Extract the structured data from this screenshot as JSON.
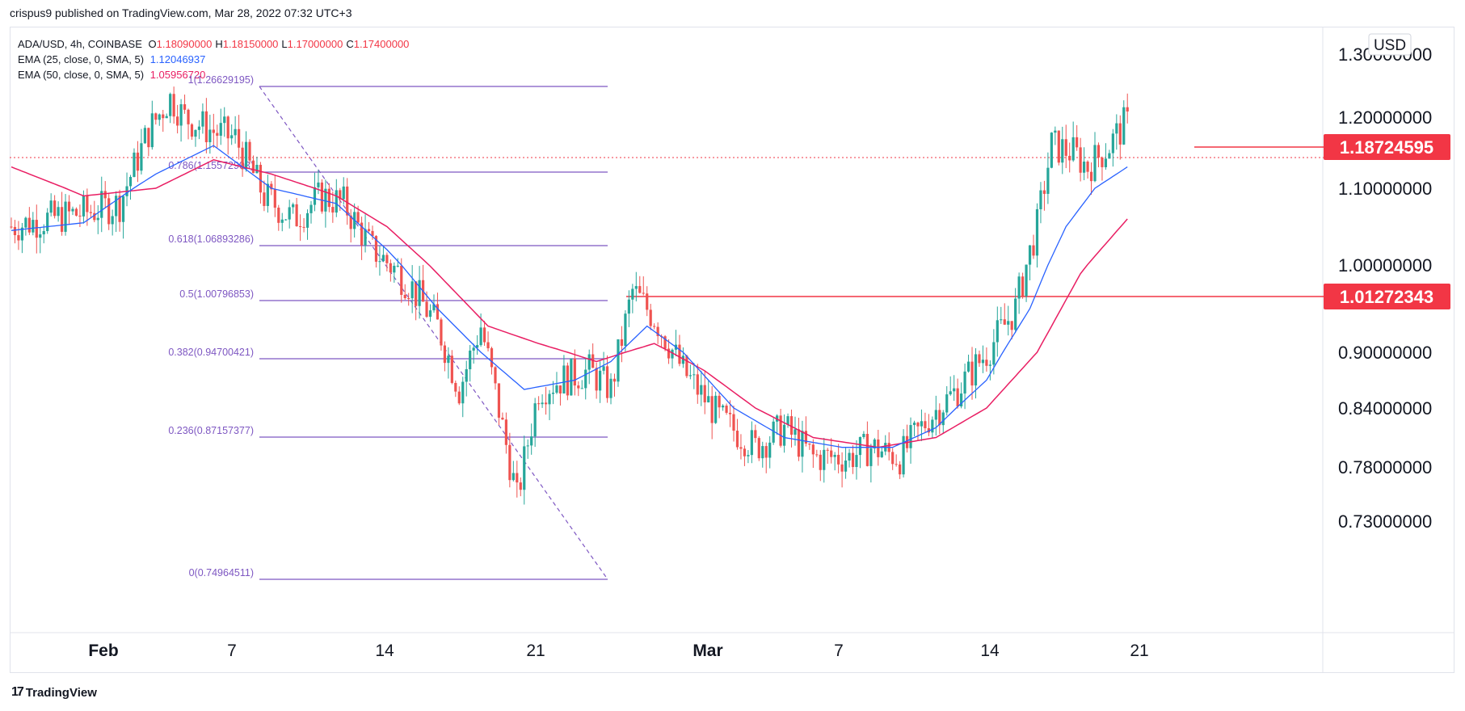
{
  "header": {
    "published_text": "crispus9 published on TradingView.com, Mar 28, 2022 07:32 UTC+3"
  },
  "legend": {
    "symbol": "ADA/USD, 4h, COINBASE",
    "ohlc": [
      {
        "k": "O",
        "v": "1.18090000"
      },
      {
        "k": "H",
        "v": "1.18150000"
      },
      {
        "k": "L",
        "v": "1.17000000"
      },
      {
        "k": "C",
        "v": "1.17400000"
      }
    ],
    "ema25_label": "EMA (25, close, 0, SMA, 5)",
    "ema25_value": "1.12046937",
    "ema50_label": "EMA (50, close, 0, SMA, 5)",
    "ema50_value": "1.05956720",
    "ema50_color": "#e91e63",
    "ema25_color": "#2962ff",
    "ohlc_color": "#f23645"
  },
  "currency": "USD",
  "footer": {
    "brand": "TradingView"
  },
  "colors": {
    "up": "#26a69a",
    "down": "#ef5350",
    "fib": "#7e57c2",
    "hline": "#f23645",
    "ema25": "#2962ff",
    "ema50": "#e91e63"
  },
  "chart_data": {
    "type": "candlestick",
    "symbol": "ADA/USD",
    "timeframe": "4h",
    "yticks": [
      "1.30000000",
      "1.20000000",
      "1.10000000",
      "1.00000000",
      "0.90000000",
      "0.84000000",
      "0.78000000",
      "0.73000000"
    ],
    "xticks": [
      "Feb",
      "7",
      "14",
      "21",
      "Mar",
      "7",
      "14",
      "21"
    ],
    "price_labels": [
      {
        "value": 1.18724595,
        "text": "1.18724595"
      },
      {
        "value": 1.01272343,
        "text": "1.01272343"
      }
    ],
    "fib_levels": [
      {
        "ratio": "1",
        "price": "1.26629195"
      },
      {
        "ratio": "0.786",
        "price": "1.15572903"
      },
      {
        "ratio": "0.618",
        "price": "1.06893286"
      },
      {
        "ratio": "0.5",
        "price": "1.00796853"
      },
      {
        "ratio": "0.382",
        "price": "0.94700421"
      },
      {
        "ratio": "0.236",
        "price": "0.87157377"
      },
      {
        "ratio": "0",
        "price": "0.74964511"
      }
    ],
    "close_path": [
      [
        0,
        1.05
      ],
      [
        10,
        1.06
      ],
      [
        22,
        1.07
      ],
      [
        30,
        1.08
      ],
      [
        38,
        1.18
      ],
      [
        44,
        1.23
      ],
      [
        48,
        1.2
      ],
      [
        56,
        1.18
      ],
      [
        62,
        1.17
      ],
      [
        70,
        1.09
      ],
      [
        78,
        1.06
      ],
      [
        86,
        1.09
      ],
      [
        92,
        1.08
      ],
      [
        100,
        1.02
      ],
      [
        110,
        0.98
      ],
      [
        118,
        0.93
      ],
      [
        124,
        0.86
      ],
      [
        130,
        0.93
      ],
      [
        136,
        0.82
      ],
      [
        140,
        0.75
      ],
      [
        146,
        0.86
      ],
      [
        152,
        0.87
      ],
      [
        160,
        0.88
      ],
      [
        166,
        0.86
      ],
      [
        172,
        0.97
      ],
      [
        178,
        0.94
      ],
      [
        186,
        0.88
      ],
      [
        196,
        0.83
      ],
      [
        206,
        0.8
      ],
      [
        214,
        0.82
      ],
      [
        222,
        0.79
      ],
      [
        232,
        0.79
      ],
      [
        238,
        0.8
      ],
      [
        246,
        0.79
      ],
      [
        254,
        0.83
      ],
      [
        262,
        0.86
      ],
      [
        270,
        0.9
      ],
      [
        278,
        0.95
      ],
      [
        284,
        1.05
      ],
      [
        288,
        1.16
      ],
      [
        294,
        1.15
      ],
      [
        298,
        1.13
      ],
      [
        304,
        1.16
      ],
      [
        308,
        1.19
      ]
    ],
    "ema25": [
      [
        0,
        1.045
      ],
      [
        20,
        1.055
      ],
      [
        40,
        1.12
      ],
      [
        56,
        1.16
      ],
      [
        72,
        1.1
      ],
      [
        90,
        1.08
      ],
      [
        104,
        1.02
      ],
      [
        118,
        0.95
      ],
      [
        130,
        0.9
      ],
      [
        142,
        0.86
      ],
      [
        156,
        0.87
      ],
      [
        166,
        0.89
      ],
      [
        176,
        0.93
      ],
      [
        186,
        0.9
      ],
      [
        200,
        0.84
      ],
      [
        214,
        0.81
      ],
      [
        230,
        0.8
      ],
      [
        244,
        0.8
      ],
      [
        256,
        0.82
      ],
      [
        270,
        0.87
      ],
      [
        282,
        0.95
      ],
      [
        292,
        1.05
      ],
      [
        300,
        1.1
      ],
      [
        309,
        1.13
      ]
    ],
    "ema50": [
      [
        0,
        1.13
      ],
      [
        20,
        1.09
      ],
      [
        40,
        1.1
      ],
      [
        56,
        1.14
      ],
      [
        72,
        1.12
      ],
      [
        90,
        1.09
      ],
      [
        104,
        1.05
      ],
      [
        118,
        0.99
      ],
      [
        132,
        0.93
      ],
      [
        146,
        0.91
      ],
      [
        162,
        0.89
      ],
      [
        178,
        0.91
      ],
      [
        192,
        0.88
      ],
      [
        206,
        0.84
      ],
      [
        222,
        0.81
      ],
      [
        240,
        0.8
      ],
      [
        256,
        0.81
      ],
      [
        270,
        0.84
      ],
      [
        284,
        0.9
      ],
      [
        296,
        0.99
      ],
      [
        309,
        1.06
      ]
    ]
  }
}
